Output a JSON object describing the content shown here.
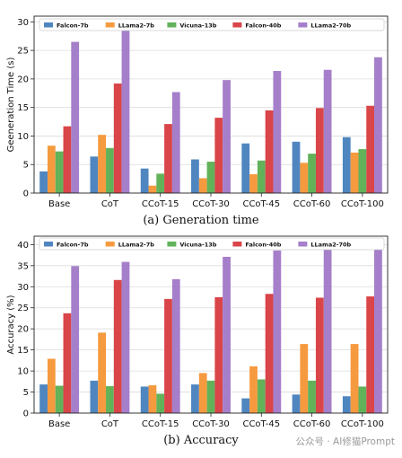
{
  "colors": {
    "Falcon-7b": "#4f86c0",
    "LLama2-7b": "#f59a3e",
    "Vicuna-13b": "#62b25a",
    "Falcon-40b": "#d94548",
    "LLama2-70b": "#a57fca"
  },
  "watermark": "公众号 · AI修猫Prompt",
  "chart_data": [
    {
      "type": "bar",
      "caption": "(a) Generation time",
      "ylabel": "Geeneration Time (s)",
      "ylim": [
        0,
        31
      ],
      "yticks": [
        0,
        5,
        10,
        15,
        20,
        25,
        30
      ],
      "grid": true,
      "legend": "top",
      "categories": [
        "Base",
        "CoT",
        "CCoT-15",
        "CCoT-30",
        "CCoT-45",
        "CCoT-60",
        "CCoT-100"
      ],
      "series": [
        {
          "name": "Falcon-7b",
          "values": [
            3.8,
            6.4,
            4.3,
            5.9,
            8.7,
            9.0,
            9.8
          ]
        },
        {
          "name": "LLama2-7b",
          "values": [
            8.3,
            10.2,
            1.3,
            2.6,
            3.3,
            5.3,
            7.1
          ]
        },
        {
          "name": "Vicuna-13b",
          "values": [
            7.3,
            7.9,
            3.4,
            5.5,
            5.7,
            6.9,
            7.7
          ]
        },
        {
          "name": "Falcon-40b",
          "values": [
            11.7,
            19.2,
            12.1,
            13.2,
            14.5,
            14.9,
            15.3
          ]
        },
        {
          "name": "LLama2-70b",
          "values": [
            26.5,
            29.4,
            17.7,
            19.8,
            21.4,
            21.6,
            23.8
          ]
        }
      ]
    },
    {
      "type": "bar",
      "caption": "(b) Accuracy",
      "ylabel": "Accuracy (%)",
      "ylim": [
        0,
        42
      ],
      "yticks": [
        0,
        5,
        10,
        15,
        20,
        25,
        30,
        35,
        40
      ],
      "grid": true,
      "legend": "top",
      "categories": [
        "Base",
        "CoT",
        "CCoT-15",
        "CCoT-30",
        "CCoT-45",
        "CCoT-60",
        "CCoT-100"
      ],
      "series": [
        {
          "name": "Falcon-7b",
          "values": [
            6.8,
            7.7,
            6.3,
            6.8,
            3.5,
            4.4,
            4.0
          ]
        },
        {
          "name": "LLama2-7b",
          "values": [
            12.9,
            19.1,
            6.6,
            9.5,
            11.1,
            16.4,
            16.4
          ]
        },
        {
          "name": "Vicuna-13b",
          "values": [
            6.5,
            6.4,
            4.6,
            7.7,
            8.0,
            7.7,
            6.3
          ]
        },
        {
          "name": "Falcon-40b",
          "values": [
            23.7,
            31.6,
            27.1,
            27.5,
            28.3,
            27.4,
            27.7
          ]
        },
        {
          "name": "LLama2-70b",
          "values": [
            34.9,
            35.9,
            31.8,
            37.1,
            38.6,
            39.8,
            40.6
          ]
        }
      ]
    }
  ]
}
